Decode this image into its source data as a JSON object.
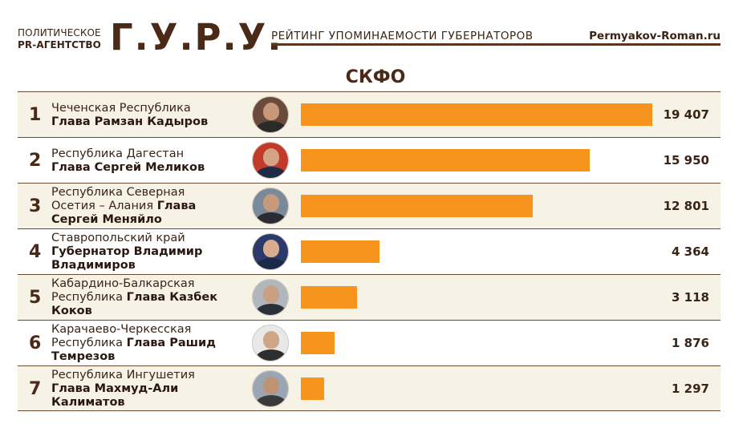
{
  "header": {
    "brand_line1": "ПОЛИТИЧЕСКОЕ",
    "brand_line2": "PR-АГЕНТСТВО",
    "brand_logo": "Г.У.Р.У.",
    "title": "РЕЙТИНГ УПОМИНАЕМОСТИ ГУБЕРНАТОРОВ",
    "site": "Permyakov-Roman.ru"
  },
  "region": "СКФО",
  "colors": {
    "bar": "#f7941d",
    "text": "#3a2416",
    "rule": "#6b4a32",
    "row_alt": "#f7f2e6"
  },
  "chart_data": {
    "type": "bar",
    "orientation": "horizontal",
    "title": "СКФО",
    "xlim": [
      0,
      19407
    ],
    "categories": [
      "Чеченская Республика Глава Рамзан Кадыров",
      "Республика Дагестан Глава Сергей Меликов",
      "Республика Северная Осетия – Алания Глава Сергей Меняйло",
      "Ставропольский край Губернатор Владимир Владимиров",
      "Кабардино-Балкарская Республика Глава Казбек Коков",
      "Карачаево-Черкесская Республика Глава Рашид Темрезов",
      "Республика Ингушетия Глава Махмуд-Али Калиматов"
    ],
    "values": [
      19407,
      15950,
      12801,
      4364,
      3118,
      1876,
      1297
    ]
  },
  "rows": [
    {
      "rank": "1",
      "region": "Чеченская Республика",
      "head": "Глава Рамзан Кадыров",
      "value": 19407,
      "value_text": "19 407",
      "avatar_icon": "governor-portrait-icon"
    },
    {
      "rank": "2",
      "region": "Республика Дагестан",
      "head": "Глава Сергей Меликов",
      "value": 15950,
      "value_text": "15 950",
      "avatar_icon": "governor-portrait-icon"
    },
    {
      "rank": "3",
      "region": "Республика Северная Осетия – Алания",
      "head": "Глава Сергей Меняйло",
      "value": 12801,
      "value_text": "12 801",
      "avatar_icon": "governor-portrait-icon"
    },
    {
      "rank": "4",
      "region": "Ставропольский край",
      "head": "Губернатор Владимир Владимиров",
      "value": 4364,
      "value_text": "4 364",
      "avatar_icon": "governor-portrait-icon"
    },
    {
      "rank": "5",
      "region": "Кабардино-Балкарская Республика",
      "head": "Глава Казбек Коков",
      "value": 3118,
      "value_text": "3 118",
      "avatar_icon": "governor-portrait-icon"
    },
    {
      "rank": "6",
      "region": "Карачаево-Черкесская Республика",
      "head": "Глава Рашид Темрезов",
      "value": 1876,
      "value_text": "1 876",
      "avatar_icon": "governor-portrait-icon"
    },
    {
      "rank": "7",
      "region": "Республика Ингушетия",
      "head": "Глава Махмуд-Али Калиматов",
      "value": 1297,
      "value_text": "1 297",
      "avatar_icon": "governor-portrait-icon"
    }
  ]
}
